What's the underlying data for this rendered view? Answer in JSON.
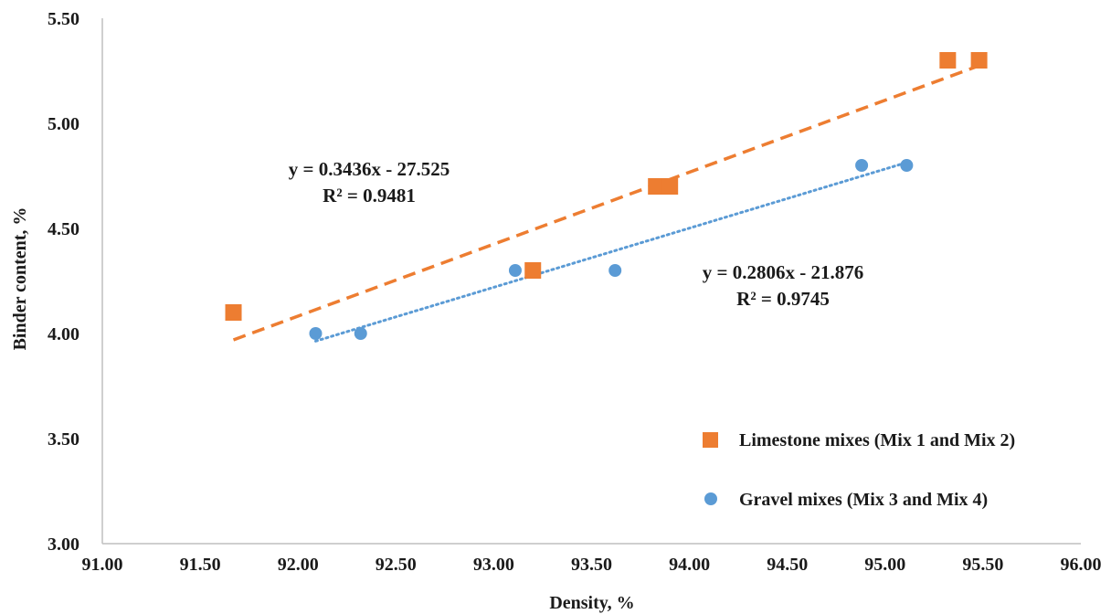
{
  "chart_data": {
    "type": "scatter",
    "title": "",
    "xlabel": "Density, %",
    "ylabel": "Binder content, %",
    "xlim": [
      91.0,
      96.0
    ],
    "ylim": [
      3.0,
      5.5
    ],
    "x_ticks": [
      "91.00",
      "91.50",
      "92.00",
      "92.50",
      "93.00",
      "93.50",
      "94.00",
      "94.50",
      "95.00",
      "95.50",
      "96.00"
    ],
    "y_ticks": [
      "3.00",
      "3.50",
      "4.00",
      "4.50",
      "5.00",
      "5.50"
    ],
    "grid": false,
    "legend_position": "bottom-right",
    "series": [
      {
        "name": "Limestone mixes (Mix 1 and Mix 2)",
        "marker": "square",
        "color": "#ED7D31",
        "points": [
          {
            "x": 91.67,
            "y": 4.1
          },
          {
            "x": 93.2,
            "y": 4.3
          },
          {
            "x": 93.83,
            "y": 4.7
          },
          {
            "x": 93.9,
            "y": 4.7
          },
          {
            "x": 95.32,
            "y": 5.3
          },
          {
            "x": 95.48,
            "y": 5.3
          }
        ],
        "trendline": {
          "style": "dashed",
          "x_range": [
            91.67,
            95.48
          ],
          "equation": "y = 0.3436x - 27.525",
          "r_squared": "R² = 0.9481"
        }
      },
      {
        "name": "Gravel mixes (Mix 3 and Mix 4)",
        "marker": "circle",
        "color": "#5B9BD5",
        "points": [
          {
            "x": 92.09,
            "y": 4.0
          },
          {
            "x": 92.32,
            "y": 4.0
          },
          {
            "x": 93.11,
            "y": 4.3
          },
          {
            "x": 93.62,
            "y": 4.3
          },
          {
            "x": 94.88,
            "y": 4.8
          },
          {
            "x": 95.11,
            "y": 4.8
          }
        ],
        "trendline": {
          "style": "dotted",
          "x_range": [
            92.09,
            95.11
          ],
          "equation": "y = 0.2806x - 21.876",
          "r_squared": "R² = 0.9745"
        }
      }
    ]
  }
}
